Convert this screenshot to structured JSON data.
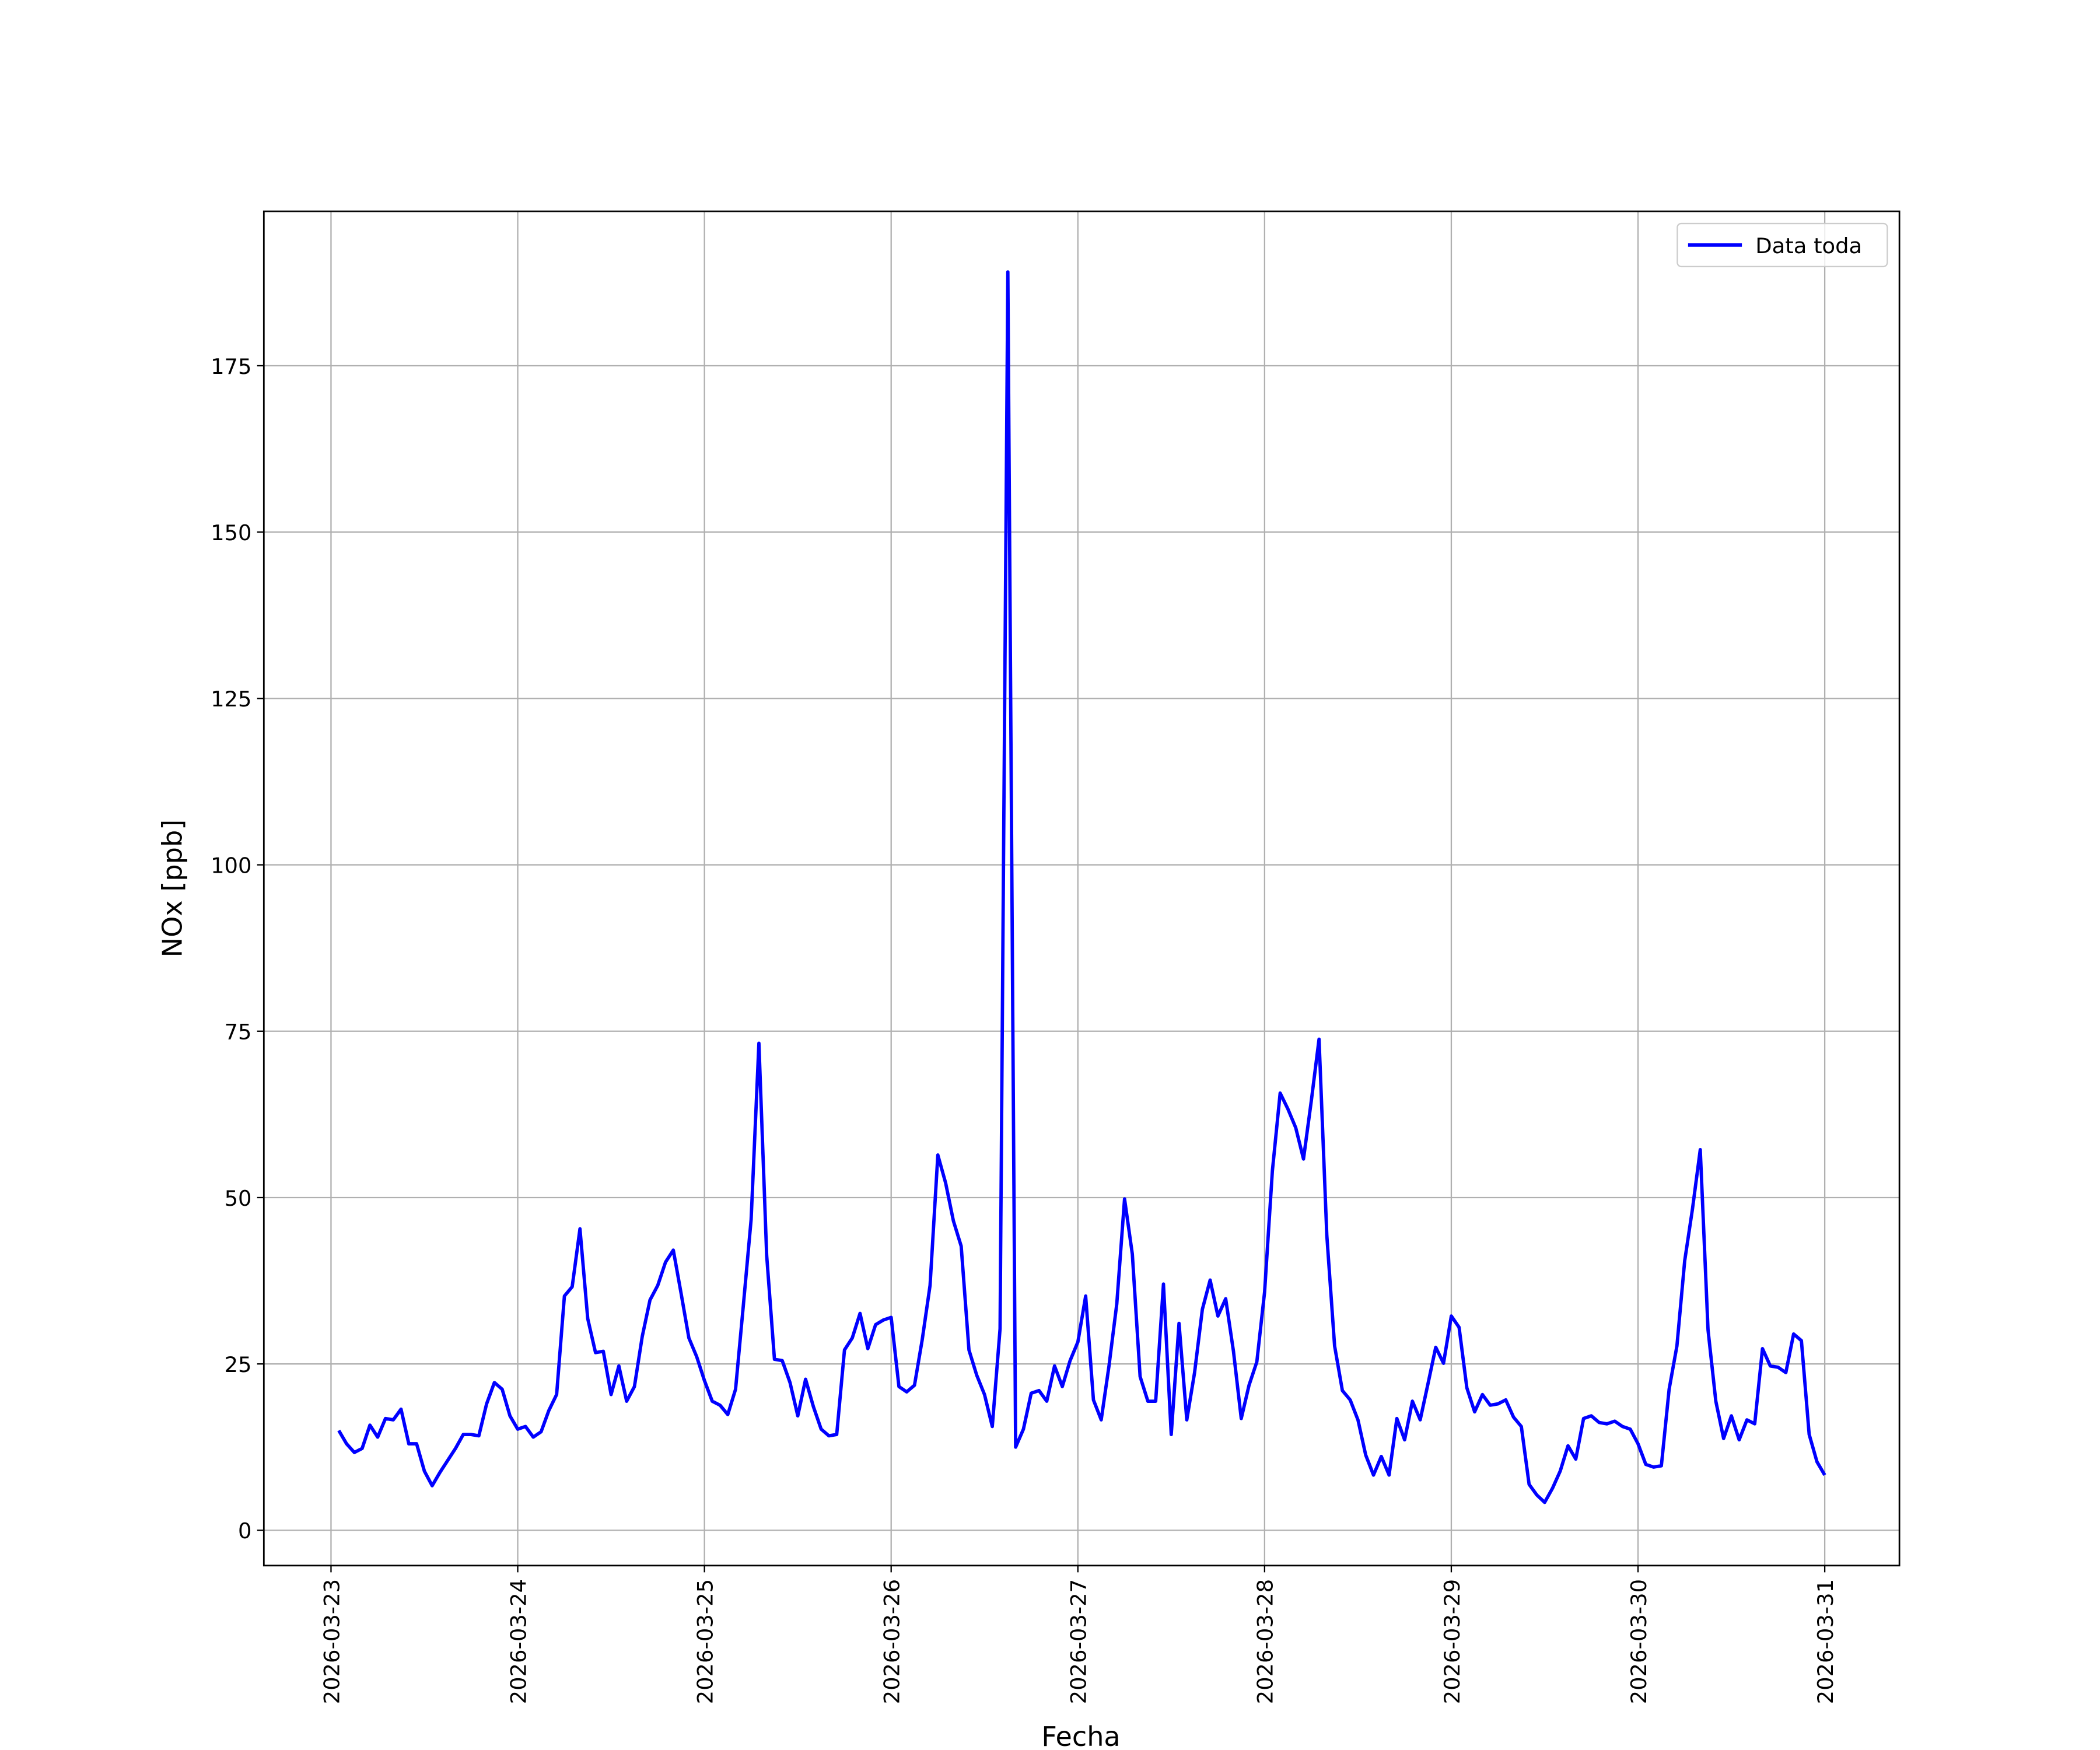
{
  "chart_data": {
    "type": "line",
    "xlabel": "Fecha",
    "ylabel": "NOx [ppb]",
    "x": [
      "2026-03-23T01:00",
      "2026-03-23T02:00",
      "2026-03-23T03:00",
      "2026-03-23T04:00",
      "2026-03-23T05:00",
      "2026-03-23T06:00",
      "2026-03-23T07:00",
      "2026-03-23T08:00",
      "2026-03-23T09:00",
      "2026-03-23T10:00",
      "2026-03-23T11:00",
      "2026-03-23T12:00",
      "2026-03-23T13:00",
      "2026-03-23T14:00",
      "2026-03-23T15:00",
      "2026-03-23T16:00",
      "2026-03-23T17:00",
      "2026-03-23T18:00",
      "2026-03-23T19:00",
      "2026-03-23T20:00",
      "2026-03-23T21:00",
      "2026-03-23T22:00",
      "2026-03-23T23:00",
      "2026-03-24T00:00",
      "2026-03-24T01:00",
      "2026-03-24T02:00",
      "2026-03-24T03:00",
      "2026-03-24T04:00",
      "2026-03-24T05:00",
      "2026-03-24T06:00",
      "2026-03-24T07:00",
      "2026-03-24T08:00",
      "2026-03-24T09:00",
      "2026-03-24T10:00",
      "2026-03-24T11:00",
      "2026-03-24T12:00",
      "2026-03-24T13:00",
      "2026-03-24T14:00",
      "2026-03-24T15:00",
      "2026-03-24T16:00",
      "2026-03-24T17:00",
      "2026-03-24T18:00",
      "2026-03-24T19:00",
      "2026-03-24T20:00",
      "2026-03-24T21:00",
      "2026-03-24T22:00",
      "2026-03-24T23:00",
      "2026-03-25T00:00",
      "2026-03-25T01:00",
      "2026-03-25T02:00",
      "2026-03-25T03:00",
      "2026-03-25T04:00",
      "2026-03-25T05:00",
      "2026-03-25T06:00",
      "2026-03-25T07:00",
      "2026-03-25T08:00",
      "2026-03-25T09:00",
      "2026-03-25T10:00",
      "2026-03-25T11:00",
      "2026-03-25T12:00",
      "2026-03-25T13:00",
      "2026-03-25T14:00",
      "2026-03-25T15:00",
      "2026-03-25T16:00",
      "2026-03-25T17:00",
      "2026-03-25T18:00",
      "2026-03-25T19:00",
      "2026-03-25T20:00",
      "2026-03-25T21:00",
      "2026-03-25T22:00",
      "2026-03-25T23:00",
      "2026-03-26T00:00",
      "2026-03-26T01:00",
      "2026-03-26T02:00",
      "2026-03-26T03:00",
      "2026-03-26T04:00",
      "2026-03-26T05:00",
      "2026-03-26T06:00",
      "2026-03-26T07:00",
      "2026-03-26T08:00",
      "2026-03-26T09:00",
      "2026-03-26T10:00",
      "2026-03-26T11:00",
      "2026-03-26T12:00",
      "2026-03-26T13:00",
      "2026-03-26T14:00",
      "2026-03-26T15:00",
      "2026-03-26T16:00",
      "2026-03-26T17:00",
      "2026-03-26T18:00",
      "2026-03-26T19:00",
      "2026-03-26T20:00",
      "2026-03-26T21:00",
      "2026-03-26T22:00",
      "2026-03-26T23:00",
      "2026-03-27T00:00",
      "2026-03-27T01:00",
      "2026-03-27T02:00",
      "2026-03-27T03:00",
      "2026-03-27T04:00",
      "2026-03-27T05:00",
      "2026-03-27T06:00",
      "2026-03-27T07:00",
      "2026-03-27T08:00",
      "2026-03-27T09:00",
      "2026-03-27T10:00",
      "2026-03-27T11:00",
      "2026-03-27T12:00",
      "2026-03-27T13:00",
      "2026-03-27T14:00",
      "2026-03-27T15:00",
      "2026-03-27T16:00",
      "2026-03-27T17:00",
      "2026-03-27T18:00",
      "2026-03-27T19:00",
      "2026-03-27T20:00",
      "2026-03-27T21:00",
      "2026-03-27T22:00",
      "2026-03-27T23:00",
      "2026-03-28T00:00",
      "2026-03-28T01:00",
      "2026-03-28T02:00",
      "2026-03-28T03:00",
      "2026-03-28T04:00",
      "2026-03-28T05:00",
      "2026-03-28T06:00",
      "2026-03-28T07:00",
      "2026-03-28T08:00",
      "2026-03-28T09:00",
      "2026-03-28T10:00",
      "2026-03-28T11:00",
      "2026-03-28T12:00",
      "2026-03-28T13:00",
      "2026-03-28T14:00",
      "2026-03-28T15:00",
      "2026-03-28T16:00",
      "2026-03-28T17:00",
      "2026-03-28T18:00",
      "2026-03-28T19:00",
      "2026-03-28T20:00",
      "2026-03-28T21:00",
      "2026-03-28T22:00",
      "2026-03-28T23:00",
      "2026-03-29T00:00",
      "2026-03-29T01:00",
      "2026-03-29T02:00",
      "2026-03-29T03:00",
      "2026-03-29T04:00",
      "2026-03-29T05:00",
      "2026-03-29T06:00",
      "2026-03-29T07:00",
      "2026-03-29T08:00",
      "2026-03-29T09:00",
      "2026-03-29T10:00",
      "2026-03-29T11:00",
      "2026-03-29T12:00",
      "2026-03-29T13:00",
      "2026-03-29T14:00",
      "2026-03-29T15:00",
      "2026-03-29T16:00",
      "2026-03-29T17:00",
      "2026-03-29T18:00",
      "2026-03-29T19:00",
      "2026-03-29T20:00",
      "2026-03-29T21:00",
      "2026-03-29T22:00",
      "2026-03-29T23:00",
      "2026-03-30T00:00",
      "2026-03-30T01:00",
      "2026-03-30T02:00",
      "2026-03-30T03:00",
      "2026-03-30T04:00",
      "2026-03-30T05:00",
      "2026-03-30T06:00",
      "2026-03-30T07:00",
      "2026-03-30T08:00",
      "2026-03-30T09:00",
      "2026-03-30T10:00",
      "2026-03-30T11:00",
      "2026-03-30T12:00",
      "2026-03-30T13:00",
      "2026-03-30T14:00",
      "2026-03-30T15:00",
      "2026-03-30T16:00",
      "2026-03-30T17:00",
      "2026-03-30T18:00",
      "2026-03-30T19:00",
      "2026-03-30T20:00",
      "2026-03-30T21:00",
      "2026-03-30T22:00",
      "2026-03-30T23:00",
      "2026-03-31T00:00"
    ],
    "series": [
      {
        "name": "Data toda",
        "color": "#0000ff",
        "values": [
          15,
          13,
          11.7,
          12.3,
          15.8,
          14,
          16.8,
          16.6,
          18.2,
          13,
          13,
          8.9,
          6.7,
          8.7,
          10.5,
          12.3,
          14.4,
          14.4,
          14.2,
          19,
          22.2,
          21.2,
          17.2,
          15.2,
          15.6,
          14,
          14.8,
          18,
          20.4,
          35.2,
          36.6,
          45.3,
          31.8,
          26.7,
          26.9,
          20.4,
          24.7,
          19.4,
          21.6,
          29.1,
          34.6,
          36.8,
          40.3,
          42.1,
          35.6,
          28.9,
          26.1,
          22.5,
          19.4,
          18.8,
          17.4,
          21.2,
          33.8,
          46.7,
          73.2,
          41.3,
          25.7,
          25.5,
          22.2,
          17.2,
          22.7,
          18.6,
          15.2,
          14.2,
          14.4,
          27.1,
          28.9,
          32.6,
          27.3,
          30.9,
          31.6,
          32,
          21.6,
          20.8,
          21.8,
          28.7,
          36.8,
          56.4,
          52.2,
          46.5,
          42.7,
          27.1,
          23.3,
          20.4,
          15.6,
          30.3,
          189.1,
          12.5,
          15.2,
          20.6,
          21,
          19.4,
          24.7,
          21.6,
          25.5,
          28.3,
          35.2,
          19.6,
          16.6,
          24.7,
          34,
          49.8,
          41.5,
          23.1,
          19.4,
          19.4,
          37,
          14.4,
          31.1,
          16.6,
          23.7,
          33.2,
          37.6,
          32.2,
          34.8,
          26.9,
          16.8,
          21.8,
          25.3,
          35.8,
          54,
          65.7,
          63.3,
          60.5,
          55.8,
          64.5,
          73.8,
          44.3,
          27.7,
          21,
          19.6,
          16.6,
          11.3,
          8.3,
          11.1,
          8.3,
          16.8,
          13.6,
          19.4,
          16.6,
          22,
          27.5,
          25.1,
          32.2,
          30.5,
          21.4,
          17.8,
          20.4,
          18.8,
          19,
          19.6,
          17,
          15.6,
          6.9,
          5.3,
          4.2,
          6.3,
          8.9,
          12.7,
          10.7,
          16.8,
          17.2,
          16.2,
          16,
          16.4,
          15.6,
          15.2,
          13,
          9.9,
          9.5,
          9.7,
          21.2,
          27.7,
          40.5,
          48.3,
          57.2,
          30.1,
          19.4,
          13.8,
          17.2,
          13.6,
          16.6,
          16,
          27.3,
          24.7,
          24.5,
          23.7,
          29.5,
          28.5,
          14.4,
          10.3,
          8.3
        ]
      }
    ],
    "xlim": [
      "2026-03-22T15:22",
      "2026-03-31T09:36"
    ],
    "xticks": [
      "2026-03-23",
      "2026-03-24",
      "2026-03-25",
      "2026-03-26",
      "2026-03-27",
      "2026-03-28",
      "2026-03-29",
      "2026-03-30",
      "2026-03-31"
    ],
    "ylim": [
      -5.3,
      198.2
    ],
    "yticks": [
      0,
      25,
      50,
      75,
      100,
      125,
      150,
      175
    ],
    "grid": true,
    "legend": "upper right"
  }
}
